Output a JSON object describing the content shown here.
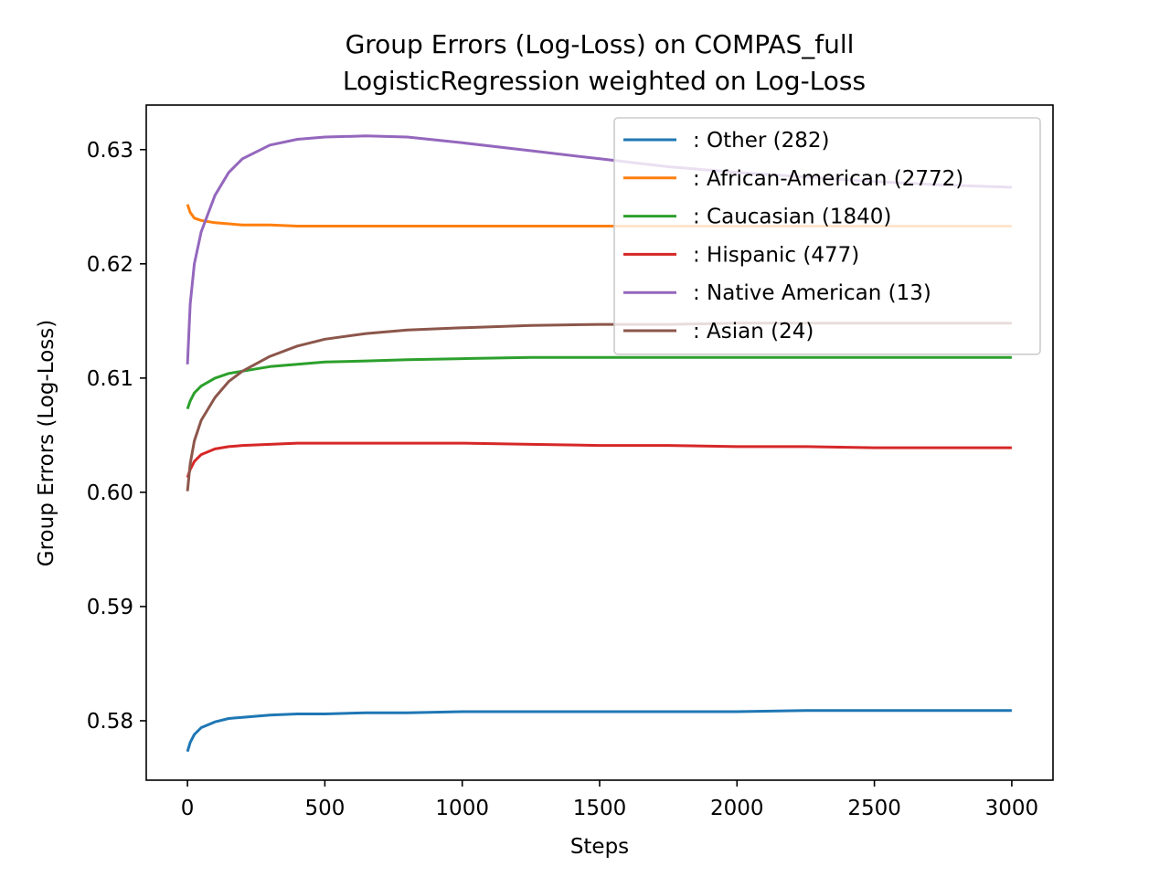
{
  "chart_data": {
    "type": "line",
    "title": "Group Errors (Log-Loss) on COMPAS_full",
    "subtitle": "LogisticRegression weighted on Log-Loss",
    "xlabel": "Steps",
    "ylabel": "Group Errors (Log-Loss)",
    "xlim": [
      -150,
      3150
    ],
    "ylim": [
      0.5748,
      0.6339
    ],
    "xticks": [
      0,
      500,
      1000,
      1500,
      2000,
      2500,
      3000
    ],
    "xtick_labels": [
      "0",
      "500",
      "1000",
      "1500",
      "2000",
      "2500",
      "3000"
    ],
    "yticks": [
      0.58,
      0.59,
      0.6,
      0.61,
      0.62,
      0.63
    ],
    "ytick_labels": [
      "0.58",
      "0.59",
      "0.60",
      "0.61",
      "0.62",
      "0.63"
    ],
    "grid": false,
    "legend_position": "upper right",
    "x": [
      0,
      10,
      25,
      50,
      100,
      150,
      200,
      300,
      400,
      500,
      650,
      800,
      1000,
      1250,
      1500,
      1750,
      2000,
      2250,
      2500,
      2750,
      3000
    ],
    "series": [
      {
        "name": ": Other  (282)",
        "color": "#1f77b4",
        "values": [
          0.5773,
          0.5781,
          0.5788,
          0.5794,
          0.5799,
          0.5802,
          0.5803,
          0.5805,
          0.5806,
          0.5806,
          0.5807,
          0.5807,
          0.5808,
          0.5808,
          0.5808,
          0.5808,
          0.5808,
          0.5809,
          0.5809,
          0.5809,
          0.5809
        ]
      },
      {
        "name": ": African-American  (2772)",
        "color": "#ff7f0e",
        "values": [
          0.6252,
          0.6245,
          0.624,
          0.6238,
          0.6236,
          0.6235,
          0.6234,
          0.6234,
          0.6233,
          0.6233,
          0.6233,
          0.6233,
          0.6233,
          0.6233,
          0.6233,
          0.6233,
          0.6233,
          0.6233,
          0.6233,
          0.6233,
          0.6233
        ]
      },
      {
        "name": ": Caucasian  (1840)",
        "color": "#2ca02c",
        "values": [
          0.6073,
          0.608,
          0.6087,
          0.6093,
          0.61,
          0.6104,
          0.6106,
          0.611,
          0.6112,
          0.6114,
          0.6115,
          0.6116,
          0.6117,
          0.6118,
          0.6118,
          0.6118,
          0.6118,
          0.6118,
          0.6118,
          0.6118,
          0.6118
        ]
      },
      {
        "name": ": Hispanic  (477)",
        "color": "#d62728",
        "values": [
          0.6013,
          0.602,
          0.6027,
          0.6033,
          0.6038,
          0.604,
          0.6041,
          0.6042,
          0.6043,
          0.6043,
          0.6043,
          0.6043,
          0.6043,
          0.6042,
          0.6041,
          0.6041,
          0.604,
          0.604,
          0.6039,
          0.6039,
          0.6039
        ]
      },
      {
        "name": ": Native American  (13)",
        "color": "#9467bd",
        "values": [
          0.6112,
          0.6165,
          0.62,
          0.6228,
          0.626,
          0.628,
          0.6292,
          0.6304,
          0.6309,
          0.6311,
          0.6312,
          0.6311,
          0.6306,
          0.6299,
          0.6292,
          0.6285,
          0.628,
          0.6276,
          0.6272,
          0.6269,
          0.6267
        ]
      },
      {
        "name": ": Asian  (24)",
        "color": "#8c564b",
        "values": [
          0.6001,
          0.6025,
          0.6045,
          0.6063,
          0.6083,
          0.6097,
          0.6106,
          0.6119,
          0.6128,
          0.6134,
          0.6139,
          0.6142,
          0.6144,
          0.6146,
          0.6147,
          0.6147,
          0.6148,
          0.6148,
          0.6148,
          0.6148,
          0.6148
        ]
      }
    ]
  }
}
